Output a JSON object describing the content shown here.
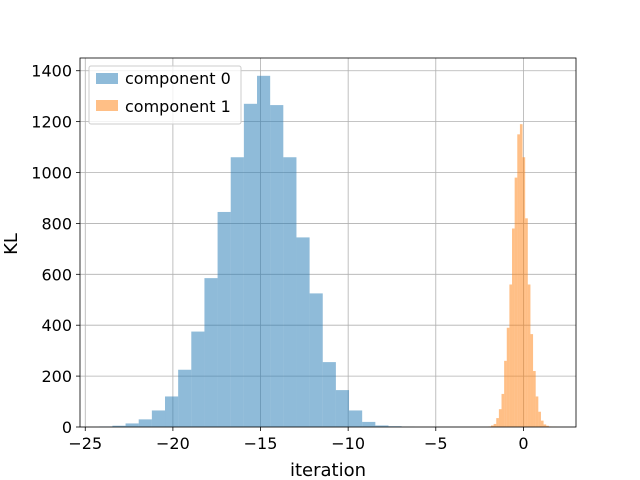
{
  "chart_data": {
    "type": "bar",
    "title": "",
    "xlabel": "iteration",
    "ylabel": "KL",
    "xlim": [
      -25.3,
      3.0
    ],
    "ylim": [
      0,
      1450
    ],
    "xticks": [
      -25,
      -20,
      -15,
      -10,
      -5,
      0
    ],
    "xtick_labels": [
      "−25",
      "−20",
      "−15",
      "−10",
      "−5",
      "0"
    ],
    "yticks": [
      0,
      200,
      400,
      600,
      800,
      1000,
      1200,
      1400
    ],
    "ytick_labels": [
      "0",
      "200",
      "400",
      "600",
      "800",
      "1000",
      "1200",
      "1400"
    ],
    "grid": true,
    "legend_position": "top-left",
    "series": [
      {
        "name": "component 0",
        "color": "#1f77b4",
        "opacity": 0.5,
        "bin_edges": [
          -24.2,
          -23.45,
          -22.7,
          -21.95,
          -21.2,
          -20.45,
          -19.7,
          -18.95,
          -18.2,
          -17.45,
          -16.7,
          -15.95,
          -15.2,
          -14.45,
          -13.7,
          -12.95,
          -12.2,
          -11.45,
          -10.7,
          -9.95,
          -9.2,
          -8.45,
          -7.7,
          -6.95,
          -6.2
        ],
        "counts": [
          2,
          5,
          14,
          30,
          65,
          120,
          225,
          375,
          585,
          845,
          1060,
          1270,
          1380,
          1265,
          1060,
          745,
          525,
          255,
          145,
          65,
          20,
          6,
          3,
          1
        ]
      },
      {
        "name": "component 1",
        "color": "#ff7f0e",
        "opacity": 0.5,
        "bin_edges": [
          -2.0,
          -1.85,
          -1.7,
          -1.55,
          -1.4,
          -1.25,
          -1.1,
          -0.95,
          -0.8,
          -0.65,
          -0.5,
          -0.35,
          -0.2,
          -0.05,
          0.1,
          0.25,
          0.4,
          0.55,
          0.7,
          0.85,
          1.0,
          1.15,
          1.3,
          1.45,
          1.6,
          1.75,
          1.9
        ],
        "counts": [
          2,
          6,
          12,
          35,
          70,
          130,
          260,
          390,
          560,
          780,
          980,
          1150,
          1190,
          1060,
          820,
          560,
          365,
          220,
          120,
          60,
          25,
          10,
          5,
          2,
          1,
          1
        ]
      }
    ]
  }
}
